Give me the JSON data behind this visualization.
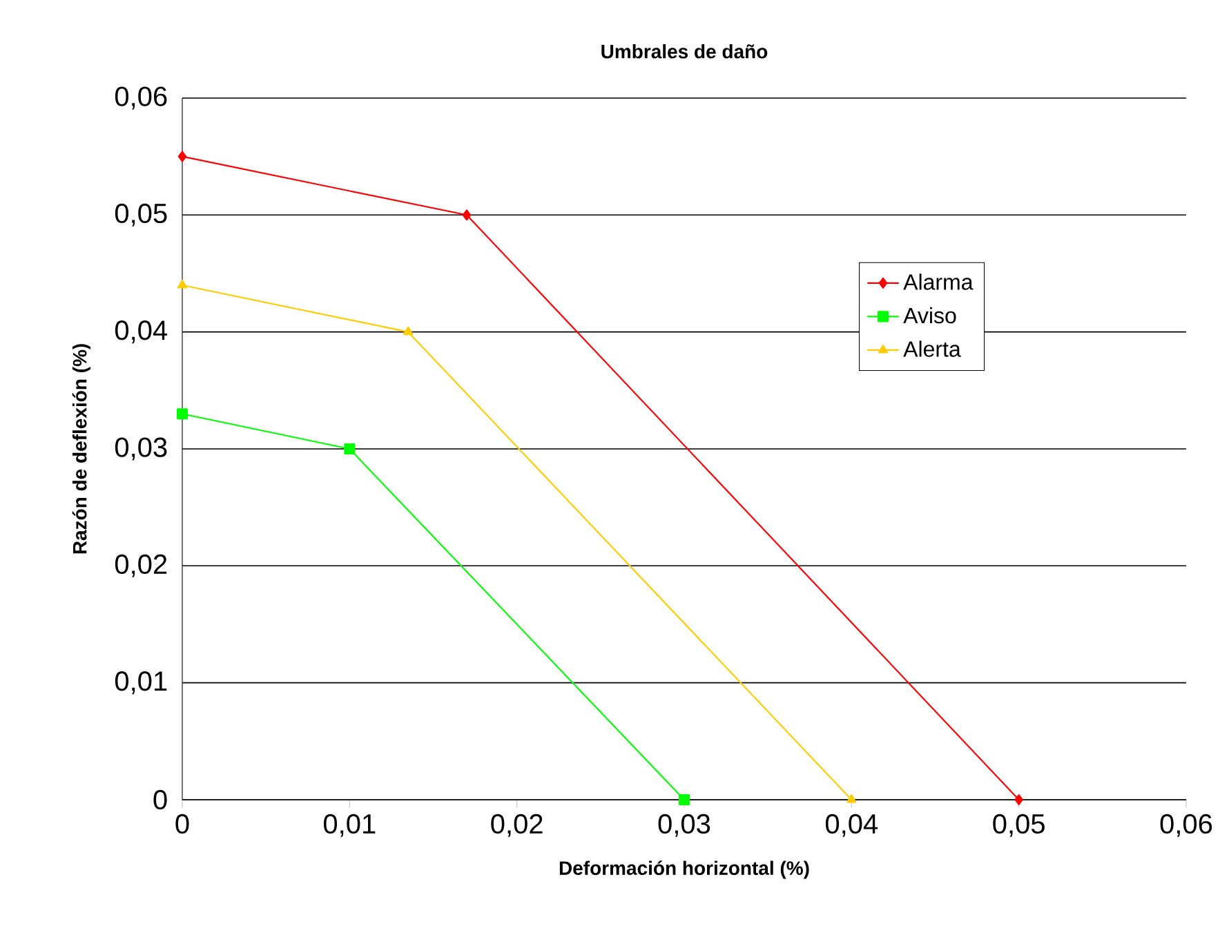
{
  "chart_data": {
    "type": "line",
    "title": "Umbrales de daño",
    "xlabel": "Deformación horizontal (%)",
    "ylabel": "Razón de deflexión (%)",
    "series": [
      {
        "name": "Alarma",
        "color": "#ff0000",
        "marker": "diamond",
        "x": [
          0,
          0.017,
          0.05
        ],
        "values": [
          0.055,
          0.05,
          0
        ]
      },
      {
        "name": "Aviso",
        "color": "#00ff00",
        "marker": "square",
        "x": [
          0,
          0.01,
          0.03
        ],
        "values": [
          0.033,
          0.03,
          0
        ]
      },
      {
        "name": "Alerta",
        "color": "#ffcc00",
        "marker": "triangle",
        "x": [
          0,
          0.0135,
          0.04
        ],
        "values": [
          0.044,
          0.04,
          0
        ]
      }
    ],
    "xlim": [
      0,
      0.06
    ],
    "ylim": [
      0,
      0.06
    ],
    "xticks": [
      {
        "value": 0,
        "label": "0"
      },
      {
        "value": 0.01,
        "label": "0,01"
      },
      {
        "value": 0.02,
        "label": "0,02"
      },
      {
        "value": 0.03,
        "label": "0,03"
      },
      {
        "value": 0.04,
        "label": "0,04"
      },
      {
        "value": 0.05,
        "label": "0,05"
      },
      {
        "value": 0.06,
        "label": "0,06"
      }
    ],
    "yticks": [
      {
        "value": 0,
        "label": "0"
      },
      {
        "value": 0.01,
        "label": "0,01"
      },
      {
        "value": 0.02,
        "label": "0,02"
      },
      {
        "value": 0.03,
        "label": "0,03"
      },
      {
        "value": 0.04,
        "label": "0,04"
      },
      {
        "value": 0.05,
        "label": "0,05"
      },
      {
        "value": 0.06,
        "label": "0,06"
      }
    ],
    "grid": "y",
    "legend": "right",
    "line_style": "solid"
  }
}
